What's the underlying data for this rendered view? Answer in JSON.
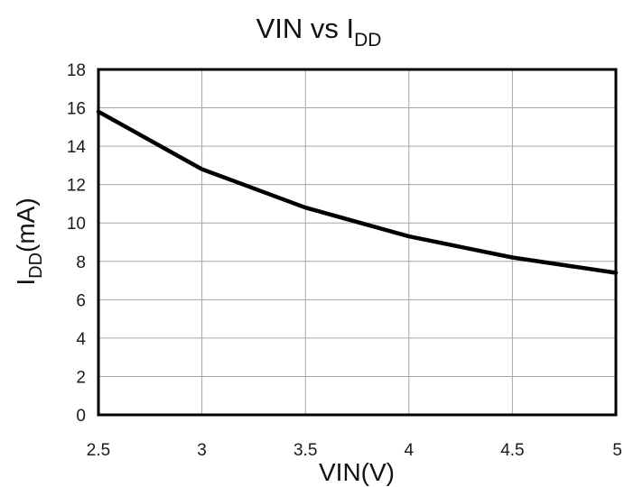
{
  "chart_data": {
    "type": "line",
    "title": "VIN vs I",
    "title_sub": "DD",
    "xlabel": "VIN(V)",
    "ylabel": "I",
    "ylabel_sub": "DD",
    "ylabel_suffix": "(mA)",
    "xlim": [
      2.5,
      5
    ],
    "ylim": [
      0,
      18
    ],
    "xticks": [
      2.5,
      3,
      3.5,
      4,
      4.5,
      5
    ],
    "xtick_labels": [
      "2.5",
      "3",
      "3.5",
      "4",
      "4.5",
      "5"
    ],
    "yticks": [
      0,
      2,
      4,
      6,
      8,
      10,
      12,
      14,
      16,
      18
    ],
    "ytick_labels": [
      "0",
      "2",
      "4",
      "6",
      "8",
      "10",
      "12",
      "14",
      "16",
      "18"
    ],
    "grid": true,
    "series": [
      {
        "x": [
          2.5,
          3,
          3.5,
          4,
          4.5,
          5
        ],
        "y": [
          15.8,
          12.8,
          10.8,
          9.3,
          8.2,
          7.4
        ],
        "color": "#000000"
      }
    ]
  }
}
